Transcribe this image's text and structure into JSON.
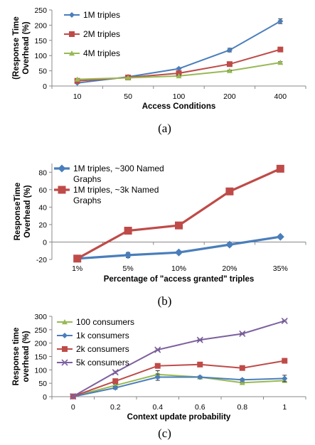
{
  "chart_data": [
    {
      "type": "line",
      "categories": [
        "10",
        "50",
        "100",
        "200",
        "400"
      ],
      "ylabel": "(Response Time\nOverhead (%)",
      "xlabel": "Access Conditions",
      "ylim": [
        0,
        250
      ],
      "yticks": [
        0,
        50,
        100,
        150,
        200,
        250
      ],
      "legend_position": "top-left",
      "caption": "(a)",
      "series": [
        {
          "name": "1M triples",
          "color": "#4a7ebb",
          "marker": "diamond",
          "values": [
            10,
            30,
            57,
            118,
            213
          ],
          "errors": [
            2,
            2,
            3,
            6,
            8
          ]
        },
        {
          "name": "2M triples",
          "color": "#be4b48",
          "marker": "square",
          "values": [
            17,
            28,
            42,
            72,
            120
          ],
          "errors": [
            1,
            1,
            2,
            3,
            3
          ]
        },
        {
          "name": "4M triples",
          "color": "#98b954",
          "marker": "triangle",
          "values": [
            22,
            27,
            33,
            50,
            77
          ],
          "errors": [
            1,
            1,
            2,
            2,
            3
          ]
        }
      ]
    },
    {
      "type": "line",
      "categories": [
        "1%",
        "5%",
        "10%",
        "20%",
        "35%"
      ],
      "ylabel": "ResponseTime\nOverhead (%)",
      "xlabel": "Percentage of \"access granted\" triples",
      "ylim": [
        -20,
        90
      ],
      "yticks": [
        -20,
        0,
        20,
        40,
        60,
        80
      ],
      "legend_position": "top-left",
      "caption": "(b)",
      "series": [
        {
          "name": "1M triples, ~300 Named\nGraphs",
          "color": "#4a7ebb",
          "marker": "diamond",
          "values": [
            -19,
            -15,
            -12,
            -3,
            6
          ],
          "errors": [
            1,
            3,
            2,
            2,
            1
          ]
        },
        {
          "name": "1M triples, ~3k Named\nGraphs",
          "color": "#be4b48",
          "marker": "square",
          "values": [
            -19,
            13,
            19,
            58,
            84
          ],
          "errors": [
            1,
            1,
            1,
            1,
            1
          ]
        }
      ]
    },
    {
      "type": "line",
      "categories": [
        "0",
        "0.2",
        "0.4",
        "0.6",
        "0.8",
        "1"
      ],
      "ylabel": "Response time\noverhead (%)",
      "xlabel": "Context update probability",
      "ylim": [
        0,
        300
      ],
      "yticks": [
        0,
        50,
        100,
        150,
        200,
        250,
        300
      ],
      "legend_position": "top-left",
      "caption": "(c)",
      "series": [
        {
          "name": "100 consumers",
          "color": "#98b954",
          "marker": "triangle",
          "values": [
            1,
            42,
            83,
            73,
            52,
            60
          ],
          "errors": [
            1,
            4,
            14,
            4,
            3,
            5
          ]
        },
        {
          "name": "1k consumers",
          "color": "#4a7ebb",
          "marker": "diamond",
          "values": [
            0,
            33,
            73,
            73,
            63,
            68
          ],
          "errors": [
            1,
            5,
            12,
            4,
            4,
            12
          ]
        },
        {
          "name": "2k consumers",
          "color": "#be4b48",
          "marker": "square",
          "values": [
            1,
            58,
            115,
            120,
            107,
            134
          ],
          "errors": [
            1,
            4,
            4,
            3,
            3,
            3
          ]
        },
        {
          "name": "5k consumers",
          "color": "#7d60a0",
          "marker": "cross",
          "values": [
            1,
            91,
            175,
            212,
            235,
            283
          ],
          "errors": [
            1,
            4,
            3,
            3,
            3,
            3
          ]
        }
      ]
    }
  ]
}
